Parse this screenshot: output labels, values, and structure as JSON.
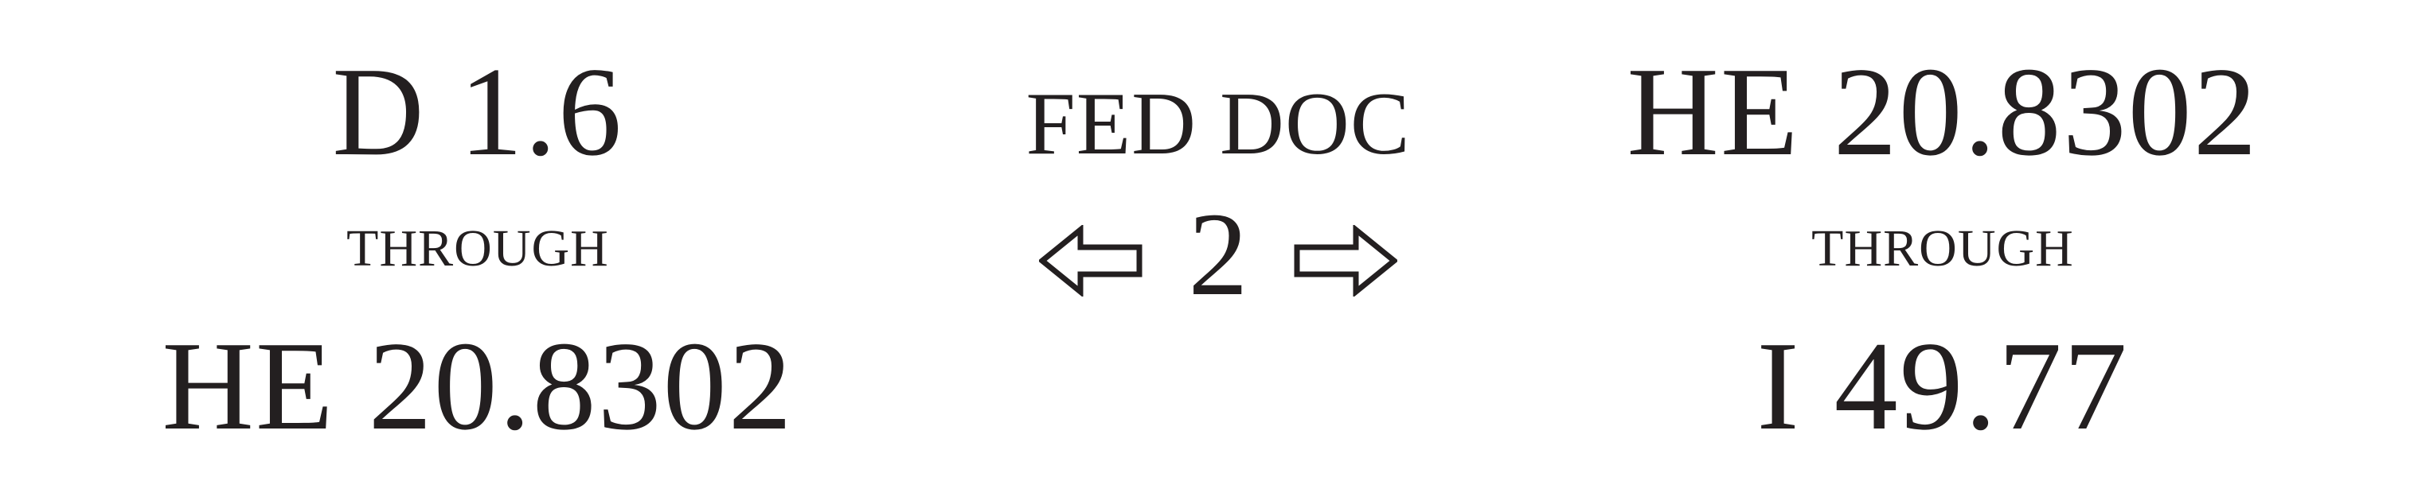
{
  "left": {
    "start": "D 1.6",
    "connector": "THROUGH",
    "end": "HE 20.8302"
  },
  "center": {
    "label": "FED DOC",
    "number": "2",
    "left_arrow": "left-arrow-icon",
    "right_arrow": "right-arrow-icon"
  },
  "right": {
    "start": "HE 20.8302",
    "connector": "THROUGH",
    "end": "I 49.77"
  },
  "colors": {
    "text": "#231f20",
    "background": "#ffffff"
  }
}
